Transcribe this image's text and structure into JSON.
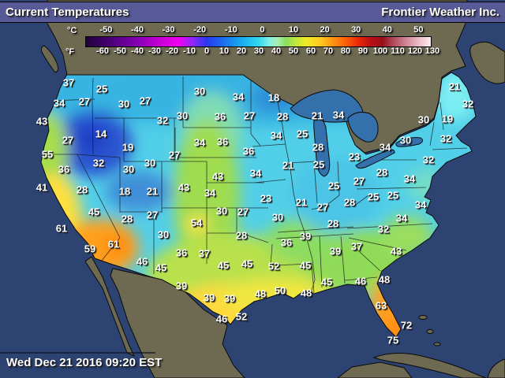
{
  "header": {
    "title": "Current Temperatures",
    "brand": "Frontier Weather Inc."
  },
  "scale": {
    "c_label": "°C",
    "f_label": "°F",
    "c_ticks": [
      -50,
      -40,
      -30,
      -20,
      -10,
      0,
      10,
      20,
      30,
      40,
      50
    ],
    "f_ticks": [
      -60,
      -50,
      -40,
      -30,
      -20,
      -10,
      0,
      10,
      20,
      30,
      40,
      50,
      60,
      70,
      80,
      90,
      100,
      110,
      120,
      130
    ],
    "bar_gradient": [
      [
        "#22003a",
        "0%"
      ],
      [
        "#3c0066",
        "5%"
      ],
      [
        "#8400b4",
        "15%"
      ],
      [
        "#cc00d8",
        "22%"
      ],
      [
        "#f000f0",
        "27%"
      ],
      [
        "#8c28f8",
        "31%"
      ],
      [
        "#2838f0",
        "35%"
      ],
      [
        "#1a70f0",
        "40%"
      ],
      [
        "#18acf0",
        "45%"
      ],
      [
        "#30d8f0",
        "50%"
      ],
      [
        "#7ff0e8",
        "53%"
      ],
      [
        "#a8eeb0",
        "55.5%"
      ],
      [
        "#8ade5e",
        "58%"
      ],
      [
        "#c2e838",
        "61%"
      ],
      [
        "#f2ea26",
        "64%"
      ],
      [
        "#ffc820",
        "68%"
      ],
      [
        "#ff9c14",
        "71%"
      ],
      [
        "#ff640a",
        "75%"
      ],
      [
        "#e82808",
        "79%"
      ],
      [
        "#bc1014",
        "82.5%"
      ],
      [
        "#981018",
        "86%"
      ],
      [
        "#b04858",
        "89%"
      ],
      [
        "#cc8090",
        "92.5%"
      ],
      [
        "#e8b4c0",
        "96%"
      ],
      [
        "#fcecf2",
        "100%"
      ]
    ]
  },
  "footer": {
    "timestamp": "Wed Dec 21 2016 09:20 EST"
  },
  "colors": {
    "ocean": "#2d4372",
    "foreign_land": "#6e6a52",
    "lake": "#3470ab",
    "header_bg": "#575a96",
    "label_text": "#ffffff"
  },
  "map": {
    "units": "°F",
    "stations": [
      [
        37,
        87,
        105
      ],
      [
        25,
        129,
        113
      ],
      [
        34,
        75,
        131
      ],
      [
        27,
        107,
        129
      ],
      [
        30,
        157,
        132
      ],
      [
        27,
        184,
        128
      ],
      [
        43,
        53,
        154
      ],
      [
        32,
        206,
        153
      ],
      [
        30,
        231,
        147
      ],
      [
        14,
        128,
        170
      ],
      [
        27,
        86,
        178
      ],
      [
        19,
        162,
        187
      ],
      [
        55,
        60,
        196
      ],
      [
        27,
        221,
        197
      ],
      [
        36,
        81,
        215
      ],
      [
        32,
        125,
        207
      ],
      [
        30,
        163,
        215
      ],
      [
        30,
        190,
        207
      ],
      [
        18,
        158,
        243
      ],
      [
        21,
        193,
        243
      ],
      [
        43,
        233,
        238
      ],
      [
        41,
        53,
        238
      ],
      [
        28,
        104,
        241
      ],
      [
        45,
        119,
        269
      ],
      [
        28,
        161,
        278
      ],
      [
        27,
        193,
        273
      ],
      [
        30,
        207,
        298
      ],
      [
        61,
        78,
        290
      ],
      [
        59,
        114,
        316
      ],
      [
        61,
        144,
        310
      ],
      [
        46,
        180,
        332
      ],
      [
        45,
        204,
        340
      ],
      [
        36,
        230,
        321
      ],
      [
        37,
        259,
        322
      ],
      [
        54,
        249,
        283
      ],
      [
        30,
        253,
        116
      ],
      [
        34,
        302,
        123
      ],
      [
        18,
        347,
        124
      ],
      [
        36,
        279,
        148
      ],
      [
        27,
        316,
        147
      ],
      [
        28,
        358,
        148
      ],
      [
        21,
        402,
        147
      ],
      [
        34,
        429,
        146
      ],
      [
        34,
        253,
        181
      ],
      [
        36,
        282,
        180
      ],
      [
        34,
        350,
        172
      ],
      [
        25,
        383,
        170
      ],
      [
        36,
        315,
        192
      ],
      [
        28,
        403,
        187
      ],
      [
        21,
        365,
        210
      ],
      [
        25,
        404,
        209
      ],
      [
        43,
        276,
        224
      ],
      [
        34,
        324,
        220
      ],
      [
        34,
        266,
        245
      ],
      [
        23,
        337,
        252
      ],
      [
        21,
        382,
        257
      ],
      [
        30,
        281,
        268
      ],
      [
        27,
        308,
        269
      ],
      [
        30,
        352,
        276
      ],
      [
        28,
        306,
        299
      ],
      [
        39,
        387,
        300
      ],
      [
        36,
        363,
        308
      ],
      [
        39,
        425,
        319
      ],
      [
        45,
        283,
        337
      ],
      [
        45,
        313,
        335
      ],
      [
        52,
        347,
        338
      ],
      [
        45,
        387,
        337
      ],
      [
        25,
        423,
        236
      ],
      [
        27,
        409,
        263
      ],
      [
        28,
        443,
        257
      ],
      [
        28,
        422,
        284
      ],
      [
        21,
        576,
        110
      ],
      [
        32,
        593,
        132
      ],
      [
        30,
        537,
        152
      ],
      [
        19,
        567,
        151
      ],
      [
        34,
        488,
        187
      ],
      [
        30,
        514,
        178
      ],
      [
        32,
        565,
        176
      ],
      [
        23,
        449,
        199
      ],
      [
        32,
        543,
        203
      ],
      [
        28,
        484,
        219
      ],
      [
        27,
        455,
        230
      ],
      [
        34,
        519,
        227
      ],
      [
        25,
        473,
        250
      ],
      [
        25,
        498,
        248
      ],
      [
        34,
        533,
        260
      ],
      [
        32,
        486,
        291
      ],
      [
        34,
        509,
        277
      ],
      [
        37,
        452,
        313
      ],
      [
        43,
        502,
        319
      ],
      [
        46,
        457,
        357
      ],
      [
        48,
        487,
        355
      ],
      [
        45,
        414,
        358
      ],
      [
        63,
        483,
        388
      ],
      [
        72,
        515,
        413
      ],
      [
        75,
        498,
        432
      ],
      [
        48,
        330,
        373
      ],
      [
        50,
        355,
        369
      ],
      [
        48,
        388,
        372
      ],
      [
        39,
        230,
        363
      ],
      [
        39,
        265,
        378
      ],
      [
        39,
        291,
        379
      ],
      [
        46,
        281,
        405
      ],
      [
        52,
        306,
        402
      ]
    ]
  }
}
